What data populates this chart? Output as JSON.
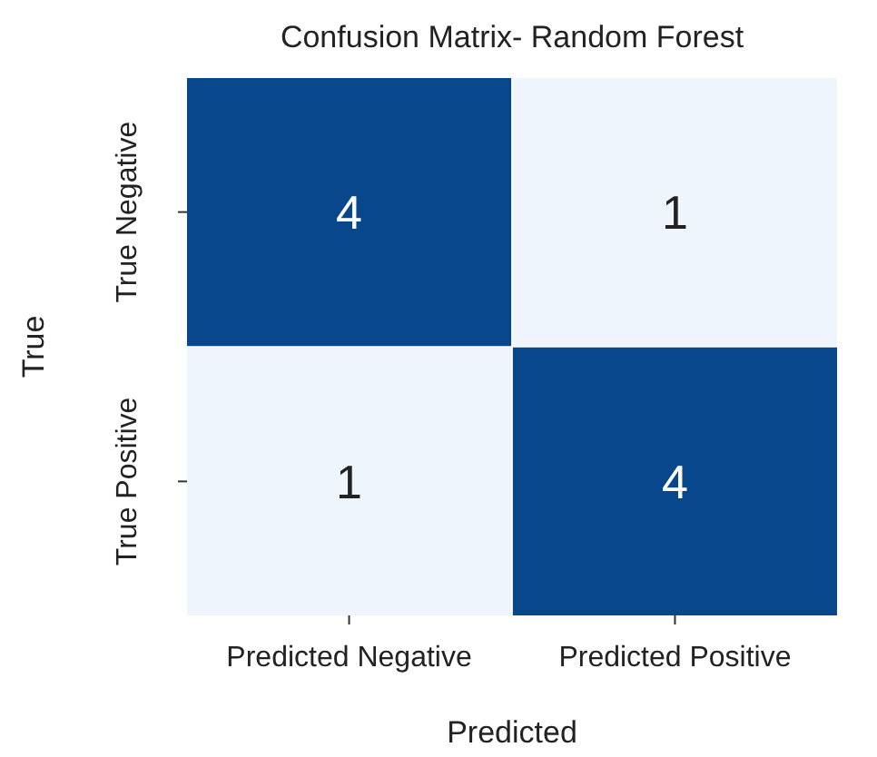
{
  "chart_data": {
    "type": "heatmap",
    "title": "Confusion Matrix- Random Forest",
    "xlabel": "Predicted",
    "ylabel": "True",
    "categories": [
      "Predicted Negative",
      "Predicted Positive"
    ],
    "y_categories": [
      "True Negative",
      "True Positive"
    ],
    "data_labels": true,
    "cells": [
      [
        4,
        1
      ],
      [
        1,
        4
      ]
    ]
  }
}
